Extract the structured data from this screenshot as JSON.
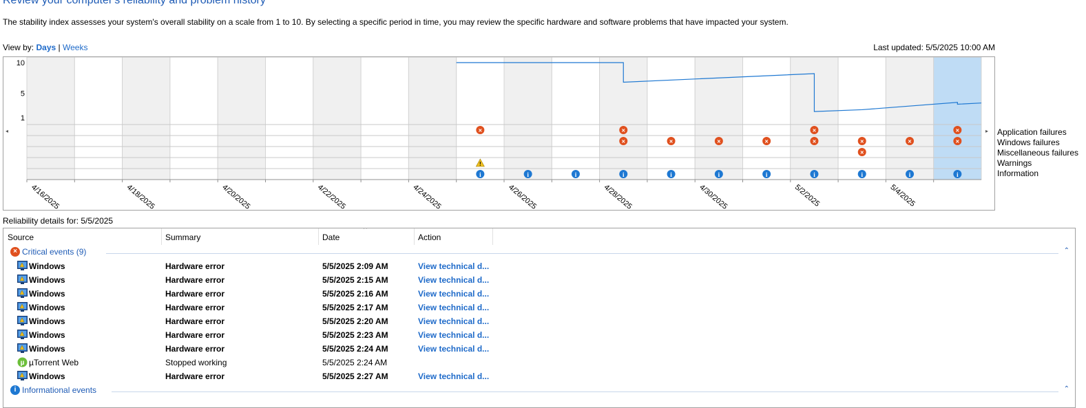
{
  "header": {
    "title": "Review your computer's reliability and problem history",
    "description": "The stability index assesses your system's overall stability on a scale from 1 to 10. By selecting a specific period in time, you may review the specific hardware and software problems that have impacted your system.",
    "view_by_label": "View by:",
    "view_days": "Days",
    "view_sep": "|",
    "view_weeks": "Weeks",
    "last_updated": "Last updated: 5/5/2025 10:00 AM"
  },
  "chart_data": {
    "type": "line",
    "ylim": [
      1,
      10
    ],
    "y_ticks": [
      "10",
      "5",
      "1"
    ],
    "x_dates": [
      "4/16/2025",
      "4/17/2025",
      "4/18/2025",
      "4/19/2025",
      "4/20/2025",
      "4/21/2025",
      "4/22/2025",
      "4/23/2025",
      "4/24/2025",
      "4/25/2025",
      "4/26/2025",
      "4/27/2025",
      "4/28/2025",
      "4/29/2025",
      "4/30/2025",
      "5/1/2025",
      "5/2/2025",
      "5/3/2025",
      "5/4/2025",
      "5/5/2025"
    ],
    "x_tick_labels": [
      "4/16/2025",
      "4/18/2025",
      "4/20/2025",
      "4/22/2025",
      "4/24/2025",
      "4/26/2025",
      "4/28/2025",
      "4/30/2025",
      "5/2/2025",
      "5/4/2025"
    ],
    "grey_columns": [
      "4/16/2025",
      "4/18/2025",
      "4/20/2025",
      "4/22/2025",
      "4/24/2025",
      "4/26/2025",
      "4/28/2025",
      "4/30/2025",
      "5/2/2025",
      "5/4/2025"
    ],
    "selected_date": "5/5/2025",
    "stability_series": [
      {
        "date": "4/25/2025",
        "value": 10
      },
      {
        "date": "4/28/2025",
        "value": 10
      },
      {
        "date": "4/28/2025",
        "value": 6.8
      },
      {
        "date": "5/2/2025",
        "value": 8.2
      },
      {
        "date": "5/2/2025",
        "value": 2.0
      },
      {
        "date": "5/3/2025",
        "value": 2.3
      },
      {
        "date": "5/5/2025",
        "value": 3.5
      },
      {
        "date": "5/5/2025",
        "value": 3.2
      },
      {
        "date": "5/5/2025",
        "value": 3.4
      }
    ],
    "categories": [
      "Application failures",
      "Windows failures",
      "Miscellaneous failures",
      "Warnings",
      "Information"
    ],
    "events": {
      "Application failures": [
        "4/25/2025",
        "4/28/2025",
        "5/2/2025",
        "5/5/2025"
      ],
      "Windows failures": [
        "4/28/2025",
        "4/29/2025",
        "4/30/2025",
        "5/1/2025",
        "5/2/2025",
        "5/3/2025",
        "5/4/2025",
        "5/5/2025"
      ],
      "Miscellaneous failures": [
        "5/3/2025"
      ],
      "Warnings": [
        "4/25/2025"
      ],
      "Information": [
        "4/25/2025",
        "4/26/2025",
        "4/27/2025",
        "4/28/2025",
        "4/29/2025",
        "4/30/2025",
        "5/1/2025",
        "5/2/2025",
        "5/3/2025",
        "5/4/2025",
        "5/5/2025"
      ]
    },
    "colors": {
      "line": "#1e78d2",
      "grey": "#f0f0f0",
      "selected": "#bfdcf5",
      "critical": "#e0501e",
      "info": "#1e78d2",
      "warning": "#f0c020"
    }
  },
  "details": {
    "label": "Reliability details for: 5/5/2025",
    "columns": [
      "Source",
      "Summary",
      "Date",
      "Action"
    ],
    "sort_indicator": "^",
    "groups": [
      {
        "title": "Critical events (9)",
        "type": "critical",
        "rows": [
          {
            "source": "Windows",
            "summary": "Hardware error",
            "date": "5/5/2025 2:09 AM",
            "action": "View technical d...",
            "bold": true,
            "icon": "windows-monitor-icon"
          },
          {
            "source": "Windows",
            "summary": "Hardware error",
            "date": "5/5/2025 2:15 AM",
            "action": "View technical d...",
            "bold": true,
            "icon": "windows-monitor-icon"
          },
          {
            "source": "Windows",
            "summary": "Hardware error",
            "date": "5/5/2025 2:16 AM",
            "action": "View technical d...",
            "bold": true,
            "icon": "windows-monitor-icon"
          },
          {
            "source": "Windows",
            "summary": "Hardware error",
            "date": "5/5/2025 2:17 AM",
            "action": "View technical d...",
            "bold": true,
            "icon": "windows-monitor-icon"
          },
          {
            "source": "Windows",
            "summary": "Hardware error",
            "date": "5/5/2025 2:20 AM",
            "action": "View technical d...",
            "bold": true,
            "icon": "windows-monitor-icon"
          },
          {
            "source": "Windows",
            "summary": "Hardware error",
            "date": "5/5/2025 2:23 AM",
            "action": "View technical d...",
            "bold": true,
            "icon": "windows-monitor-icon"
          },
          {
            "source": "Windows",
            "summary": "Hardware error",
            "date": "5/5/2025 2:24 AM",
            "action": "View technical d...",
            "bold": true,
            "icon": "windows-monitor-icon"
          },
          {
            "source": "µTorrent Web",
            "summary": "Stopped working",
            "date": "5/5/2025 2:24 AM",
            "action": "",
            "bold": false,
            "icon": "utorrent-icon"
          },
          {
            "source": "Windows",
            "summary": "Hardware error",
            "date": "5/5/2025 2:27 AM",
            "action": "View technical d...",
            "bold": true,
            "icon": "windows-monitor-icon"
          }
        ]
      },
      {
        "title": "Informational events",
        "type": "info",
        "rows": []
      }
    ]
  }
}
